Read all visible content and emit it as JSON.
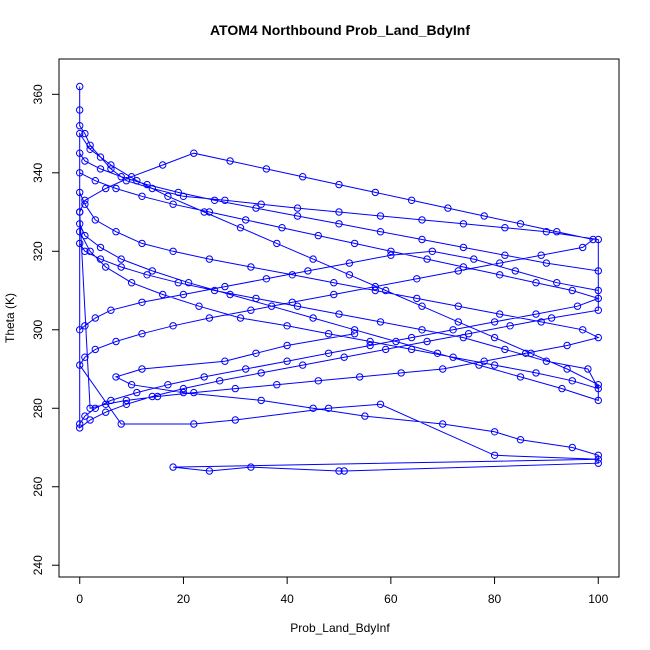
{
  "chart_data": {
    "type": "scatter",
    "title": "ATOM4 Northbound Prob_Land_BdyInf",
    "xlabel": "Prob_Land_BdyInf",
    "ylabel": "Theta (K)",
    "xlim": [
      -4,
      104
    ],
    "ylim": [
      237,
      369
    ],
    "xticks": [
      0,
      20,
      40,
      60,
      80,
      100
    ],
    "yticks": [
      240,
      260,
      280,
      300,
      320,
      340,
      360
    ],
    "grid": false,
    "legend": "none",
    "color": "#0000ff",
    "marker": "open-circle",
    "connected": true,
    "series": [
      {
        "x": [
          0,
          0,
          0,
          1,
          2,
          4,
          6,
          9,
          14,
          20,
          28,
          35,
          42,
          50,
          58,
          66,
          74,
          82,
          90,
          100,
          100,
          92,
          84,
          76,
          68,
          60,
          52,
          44,
          36,
          28,
          20,
          12,
          6,
          3,
          1,
          0,
          0,
          1,
          3,
          7,
          12,
          18,
          25,
          33,
          41,
          49,
          57,
          65,
          73,
          81,
          89,
          97,
          100,
          94,
          86,
          78,
          70,
          62,
          54,
          46,
          38,
          30,
          22,
          15,
          9,
          5,
          2,
          0,
          0,
          2,
          5,
          10,
          16,
          23,
          31,
          40,
          48,
          56,
          64,
          72,
          80,
          88,
          95,
          100,
          98,
          90,
          82,
          74,
          66,
          58,
          50,
          42,
          34,
          26,
          19,
          13,
          8,
          4,
          1,
          0,
          0,
          1,
          4,
          8,
          13,
          19,
          26,
          34,
          42,
          50,
          58,
          66,
          74,
          82,
          90,
          100,
          100,
          91,
          83,
          75,
          67,
          59,
          51,
          43,
          35,
          27,
          20,
          14,
          9,
          5,
          2,
          0,
          0,
          3,
          7,
          12,
          18,
          25,
          32,
          39,
          46,
          53,
          60,
          67,
          74,
          81,
          88,
          95,
          100,
          96,
          88,
          80,
          72,
          64,
          56,
          48,
          40,
          32,
          24,
          17,
          11,
          6,
          3,
          1,
          0,
          0,
          2,
          6,
          11,
          17,
          24,
          31,
          38,
          45,
          52,
          59,
          66,
          73,
          80,
          87,
          94,
          100,
          100,
          93,
          85,
          77,
          69,
          61,
          53,
          45,
          37,
          29,
          21,
          14,
          8,
          4,
          1,
          0,
          0,
          1,
          5,
          10,
          16,
          22,
          29,
          36,
          43,
          50,
          57,
          64,
          71,
          78,
          85,
          92,
          99,
          97,
          89,
          81,
          73,
          65,
          57,
          49,
          41,
          33,
          25,
          18,
          12,
          7,
          3,
          1,
          0,
          8,
          22,
          30,
          48,
          58,
          80,
          100,
          18,
          25,
          33,
          50,
          51,
          100,
          100,
          95,
          85,
          80,
          70,
          55,
          45,
          35,
          20,
          10,
          7,
          12,
          28,
          34,
          40,
          53
        ],
        "y": [
          362,
          356,
          352,
          350,
          347,
          344,
          341,
          338,
          336,
          334,
          333,
          332,
          331,
          330,
          329,
          328,
          327,
          326,
          325,
          323,
          310,
          312,
          315,
          318,
          320,
          319,
          317,
          315,
          313,
          311,
          309,
          307,
          305,
          303,
          301,
          300,
          335,
          332,
          328,
          325,
          322,
          320,
          318,
          316,
          314,
          312,
          310,
          308,
          306,
          304,
          302,
          300,
          298,
          296,
          294,
          292,
          290,
          289,
          288,
          287,
          286,
          285,
          284,
          283,
          282,
          281,
          280,
          330,
          325,
          320,
          316,
          312,
          309,
          306,
          303,
          301,
          299,
          297,
          295,
          293,
          291,
          289,
          287,
          285,
          290,
          292,
          295,
          298,
          300,
          302,
          304,
          306,
          308,
          310,
          312,
          314,
          316,
          318,
          320,
          322,
          345,
          343,
          341,
          339,
          337,
          335,
          333,
          331,
          329,
          327,
          325,
          323,
          321,
          319,
          317,
          315,
          305,
          303,
          301,
          299,
          297,
          295,
          293,
          291,
          289,
          287,
          285,
          283,
          281,
          279,
          277,
          275,
          340,
          338,
          336,
          334,
          332,
          330,
          328,
          326,
          324,
          322,
          320,
          318,
          316,
          314,
          312,
          310,
          308,
          306,
          304,
          302,
          300,
          298,
          296,
          294,
          292,
          290,
          288,
          286,
          284,
          282,
          280,
          278,
          276,
          350,
          346,
          342,
          338,
          334,
          330,
          326,
          322,
          318,
          314,
          310,
          306,
          302,
          298,
          294,
          290,
          286,
          282,
          285,
          288,
          291,
          294,
          297,
          300,
          303,
          306,
          309,
          312,
          315,
          318,
          321,
          324,
          327,
          330,
          333,
          336,
          339,
          342,
          345,
          343,
          341,
          339,
          337,
          335,
          333,
          331,
          329,
          327,
          325,
          323,
          321,
          319,
          317,
          315,
          313,
          311,
          309,
          307,
          305,
          303,
          301,
          299,
          297,
          295,
          293,
          291,
          276,
          276,
          277,
          280,
          281,
          268,
          267,
          265,
          264,
          265,
          264,
          264,
          266,
          268,
          270,
          272,
          274,
          276,
          278,
          280,
          282,
          284,
          286,
          288,
          290,
          292,
          294,
          296,
          299
        ]
      }
    ]
  }
}
